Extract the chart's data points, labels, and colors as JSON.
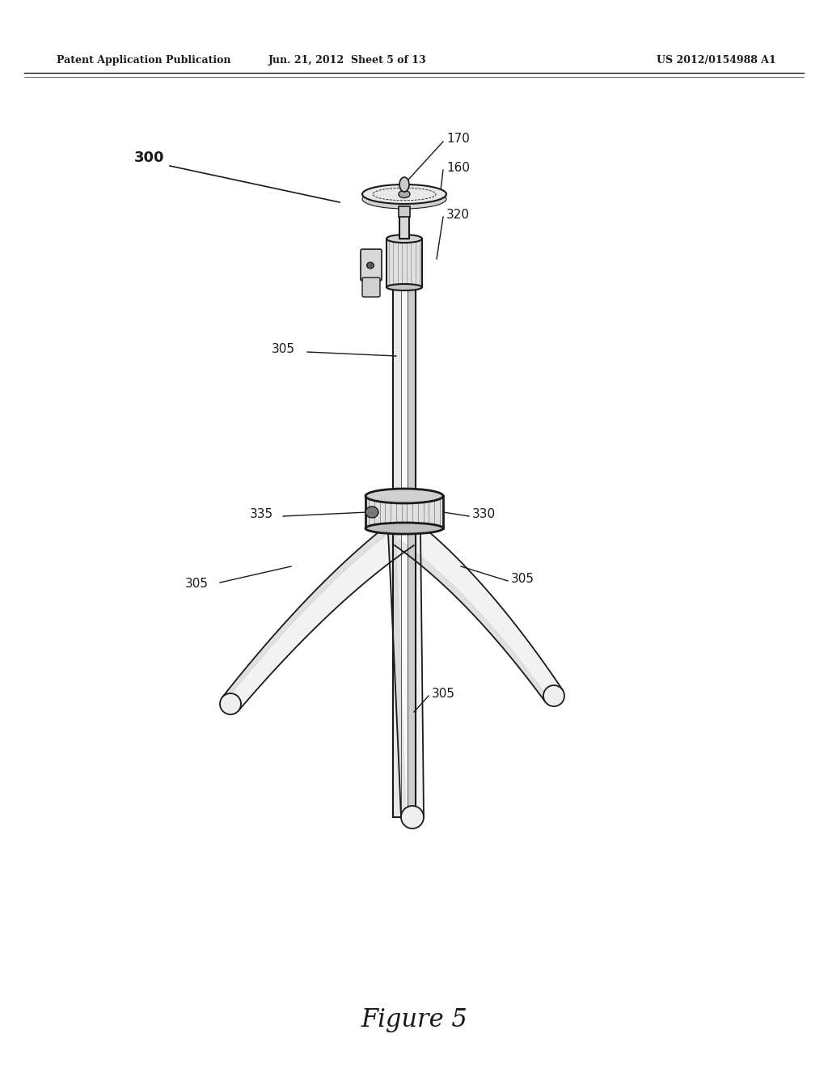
{
  "header_left": "Patent Application Publication",
  "header_mid": "Jun. 21, 2012  Sheet 5 of 13",
  "header_right": "US 2012/0154988 A1",
  "figure_label": "Figure 5",
  "bg_color": "#ffffff",
  "line_color": "#1a1a1a",
  "shade_color": "#cccccc"
}
